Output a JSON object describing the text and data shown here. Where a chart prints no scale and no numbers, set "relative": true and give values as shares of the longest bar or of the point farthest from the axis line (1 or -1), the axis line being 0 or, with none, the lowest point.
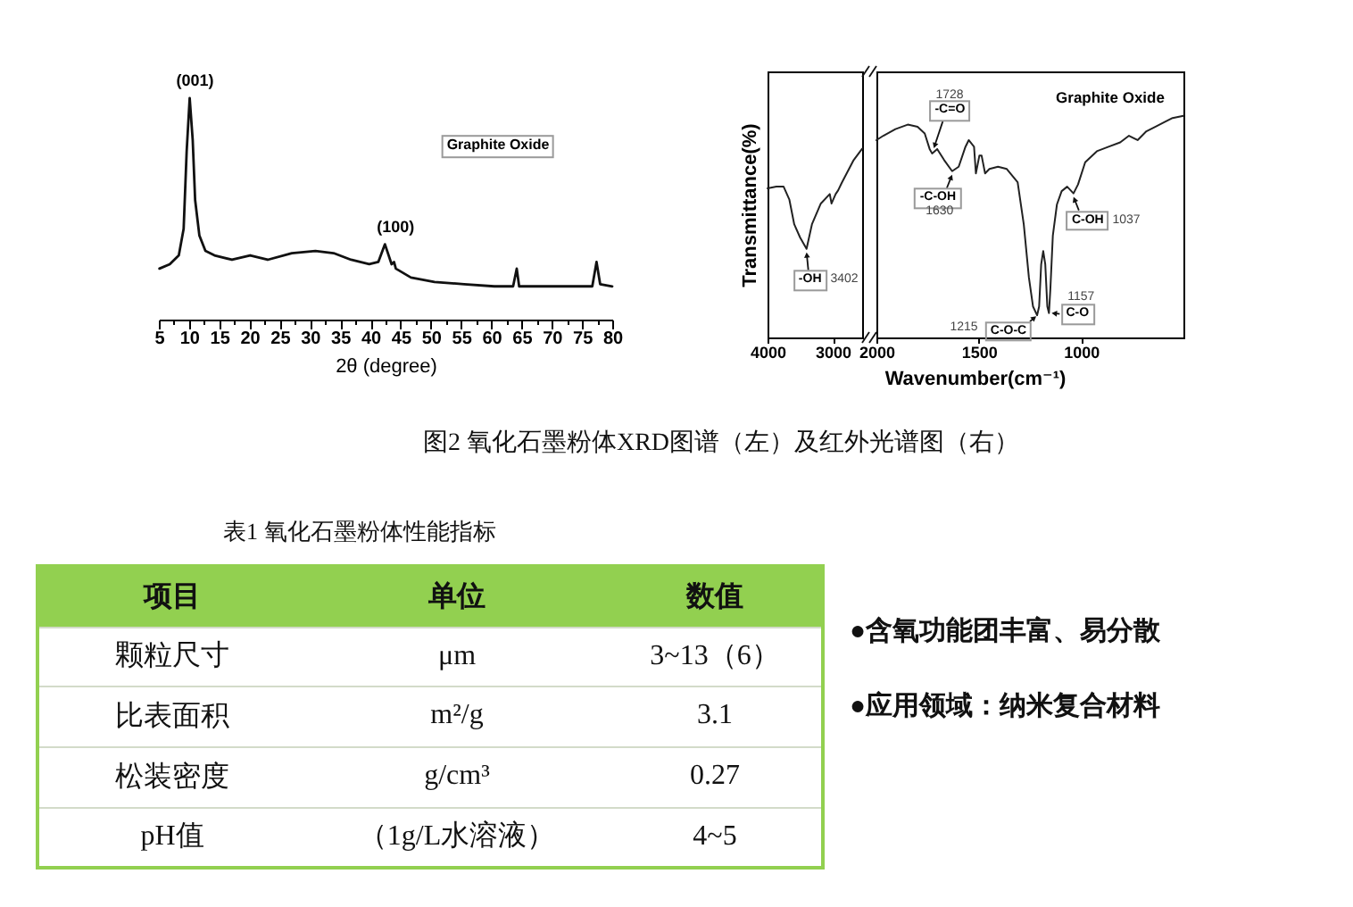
{
  "chart_data": [
    {
      "type": "line",
      "relative": true,
      "color": "#111111",
      "xlabel": "2θ (degree)",
      "xlim": [
        5,
        80
      ],
      "xticks": [
        5,
        {
          "value": 7.5,
          "label": null
        },
        10,
        {
          "value": 12.5,
          "label": null
        },
        15,
        {
          "value": 17.5,
          "label": null
        },
        20,
        {
          "value": 22.5,
          "label": null
        },
        25,
        {
          "value": 27.5,
          "label": null
        },
        30,
        {
          "value": 32.5,
          "label": null
        },
        35,
        {
          "value": 37.5,
          "label": null
        },
        40,
        {
          "value": 42.5,
          "label": null
        },
        45,
        {
          "value": 47.5,
          "label": null
        },
        50,
        {
          "value": 52.5,
          "label": null
        },
        55,
        {
          "value": 57.5,
          "label": null
        },
        60,
        {
          "value": 62.5,
          "label": null
        },
        65,
        {
          "value": 67.5,
          "label": null
        },
        70,
        {
          "value": 72.5,
          "label": null
        },
        75,
        {
          "value": 77.5,
          "label": null
        },
        80
      ],
      "tick_labels": "x",
      "x": [
        5.1,
        6.8,
        8.3,
        9.1,
        9.6,
        10.1,
        10.6,
        11.0,
        11.7,
        12.7,
        14.2,
        17.1,
        20.1,
        23.0,
        27.0,
        30.9,
        33.9,
        36.8,
        39.8,
        41.3,
        42.4,
        43.5,
        43.9,
        44.2,
        46.7,
        50.6,
        55.5,
        60.5,
        63.6,
        64.2,
        64.6,
        68.3,
        73.3,
        76.7,
        77.4,
        78.0,
        80.0
      ],
      "values": [
        0.23,
        0.25,
        0.29,
        0.41,
        0.76,
        1.0,
        0.81,
        0.54,
        0.38,
        0.31,
        0.29,
        0.27,
        0.29,
        0.27,
        0.3,
        0.31,
        0.3,
        0.27,
        0.25,
        0.26,
        0.34,
        0.25,
        0.26,
        0.23,
        0.19,
        0.17,
        0.16,
        0.15,
        0.15,
        0.23,
        0.15,
        0.15,
        0.15,
        0.15,
        0.26,
        0.16,
        0.15
      ],
      "annotations": [
        {
          "text": "(001)",
          "x": 10.1,
          "y": 1.0
        },
        {
          "text": "(100)",
          "x": 42.4,
          "y": 0.34
        },
        "Graphite Oxide"
      ]
    },
    {
      "type": "line",
      "relative": true,
      "color": "#222222",
      "ylabel": "Transmittance(%)",
      "xlim": [
        4000,
        2550
      ],
      "xticks": [
        4000,
        3000
      ],
      "tick_labels": "x",
      "x": [
        4000,
        3864,
        3755,
        3665,
        3591,
        3501,
        3402,
        3319,
        3183,
        3046,
        3019,
        2956,
        2917,
        2862,
        2680,
        2550
      ],
      "values": [
        0.79,
        0.8,
        0.8,
        0.73,
        0.6,
        0.53,
        0.47,
        0.6,
        0.71,
        0.76,
        0.71,
        0.76,
        0.78,
        0.82,
        0.94,
        1.0
      ],
      "annotations": [
        {
          "text": "-OH",
          "x": 3402,
          "y": 0.47
        },
        "3402"
      ]
    },
    {
      "type": "line",
      "relative": true,
      "color": "#222222",
      "xlabel": "Wavenumber(cm⁻¹)",
      "xlim": [
        2000,
        500
      ],
      "xticks": [
        2000,
        1500,
        1000
      ],
      "tick_labels": "x",
      "x": [
        2000,
        1966,
        1907,
        1847,
        1799,
        1764,
        1740,
        1728,
        1703,
        1669,
        1630,
        1598,
        1565,
        1549,
        1523,
        1514,
        1497,
        1486,
        1469,
        1448,
        1406,
        1363,
        1310,
        1280,
        1255,
        1235,
        1215,
        1205,
        1195,
        1185,
        1175,
        1165,
        1157,
        1150,
        1138,
        1118,
        1095,
        1068,
        1037,
        1015,
        980,
        923,
        866,
        809,
        766,
        724,
        681,
        638,
        596,
        553,
        500
      ],
      "values": [
        0.89,
        0.91,
        0.94,
        0.96,
        0.95,
        0.92,
        0.85,
        0.83,
        0.85,
        0.8,
        0.75,
        0.77,
        0.86,
        0.89,
        0.86,
        0.74,
        0.82,
        0.82,
        0.74,
        0.76,
        0.77,
        0.76,
        0.7,
        0.51,
        0.27,
        0.14,
        0.1,
        0.14,
        0.33,
        0.39,
        0.33,
        0.14,
        0.11,
        0.22,
        0.46,
        0.6,
        0.66,
        0.68,
        0.65,
        0.69,
        0.79,
        0.84,
        0.86,
        0.88,
        0.91,
        0.89,
        0.93,
        0.95,
        0.97,
        0.99,
        1.0
      ],
      "annotations": [
        "1728",
        {
          "text": "-C=O",
          "x": 1728,
          "y": 0.83
        },
        {
          "text": "-C-OH",
          "x": 1630,
          "y": 0.75
        },
        {
          "text": "1630",
          "x": 1630,
          "y": 0.75
        },
        "1215",
        {
          "text": "C-O-C",
          "x": 1215,
          "y": 0.1
        },
        {
          "text": "1157",
          "x": 1157,
          "y": 0.11
        },
        {
          "text": "C-O",
          "x": 1157,
          "y": 0.11
        },
        {
          "text": "C-OH",
          "x": 1037,
          "y": 0.65
        },
        "1037",
        "Graphite Oxide"
      ]
    },
    {
      "type": "other",
      "annotations": [
        "图2 氧化石墨粉体XRD图谱（左）及红外光谱图（右）"
      ]
    },
    {
      "type": "other",
      "title": "表1 氧化石墨粉体性能指标",
      "annotations": [
        "项目",
        "单位",
        "数值",
        "颗粒尺寸",
        "μm",
        "3~13（6）",
        "比表面积",
        "m²/g",
        "3.1",
        "松装密度",
        "g/cm³",
        "0.27",
        "pH值",
        "（1g/L水溶液）",
        "4~5"
      ]
    },
    {
      "type": "other",
      "annotations": [
        "●含氧功能团丰富、易分散",
        "●应用领域：纳米复合材料"
      ]
    }
  ]
}
